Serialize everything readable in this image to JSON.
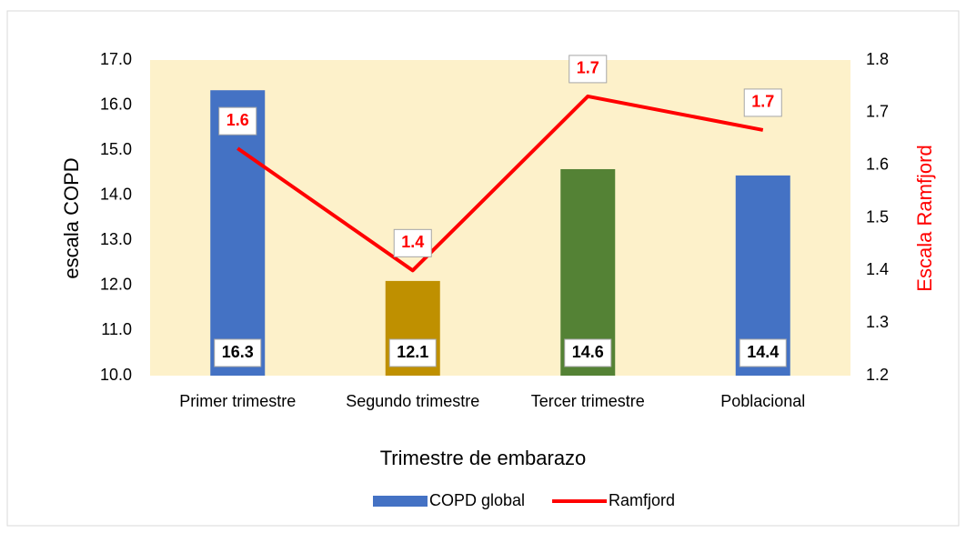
{
  "chart_data": {
    "type": "bar",
    "x_label": "Trimestre de embarazo",
    "y_label": "escala COPD",
    "y2_label": "Escala Ramfjord",
    "categories": [
      "Primer trimestre",
      "Segundo trimestre",
      "Tercer trimestre",
      "Poblacional"
    ],
    "series": [
      {
        "name": "COPD global",
        "type": "bar",
        "color": "#4472c4",
        "colors": [
          "#4472c4",
          "#bf9000",
          "#548235",
          "#4472c4"
        ],
        "values": [
          16.33,
          12.1,
          14.58,
          14.44
        ],
        "value_labels": [
          "16.3",
          "12.1",
          "14.6",
          "14.4"
        ]
      },
      {
        "name": "Ramfjord",
        "type": "line",
        "axis": "y2",
        "color": "#ff0000",
        "values": [
          1.632,
          1.4,
          1.731,
          1.667
        ],
        "value_labels": [
          "1.6",
          "1.4",
          "1.7",
          "1.7"
        ]
      }
    ],
    "ylim": [
      10,
      17
    ],
    "yticks": [
      {
        "value": 10,
        "label": "10.0"
      },
      {
        "value": 11,
        "label": "11.0"
      },
      {
        "value": 12,
        "label": "12.0"
      },
      {
        "value": 13,
        "label": "13.0"
      },
      {
        "value": 14,
        "label": "14.0"
      },
      {
        "value": 15,
        "label": "15.0"
      },
      {
        "value": 16,
        "label": "16.0"
      },
      {
        "value": 17,
        "label": "17.0"
      }
    ],
    "y2lim": [
      1.2,
      1.8
    ],
    "y2ticks": [
      1.2,
      1.3,
      1.4,
      1.5,
      1.6,
      1.7,
      1.8
    ],
    "grid": false,
    "legend": "bottom"
  }
}
